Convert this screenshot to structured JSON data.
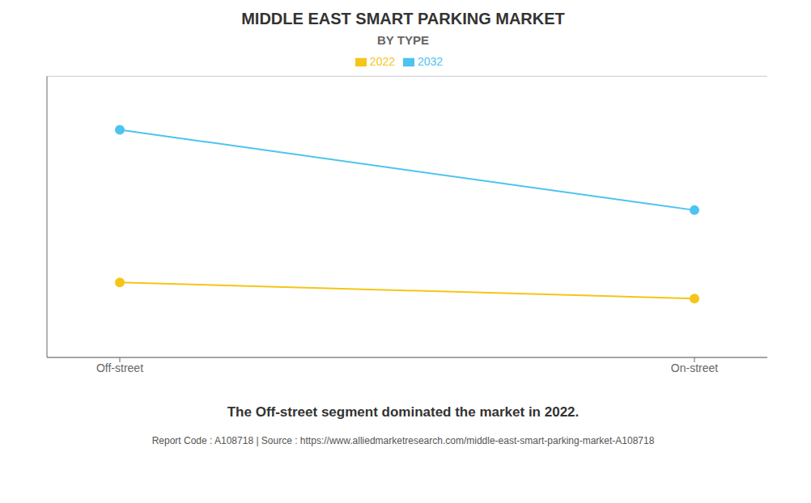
{
  "chart_data": {
    "type": "line",
    "title": "MIDDLE EAST SMART PARKING MARKET",
    "subtitle": "BY TYPE",
    "categories": [
      "Off-street",
      "On-street"
    ],
    "series": [
      {
        "name": "2022",
        "color": "#F5C518",
        "values": [
          0.28,
          0.22
        ],
        "marker": "circle"
      },
      {
        "name": "2032",
        "color": "#4DC3F0",
        "values": [
          0.85,
          0.55
        ],
        "marker": "circle"
      }
    ],
    "ylim": [
      0.0,
      1.05
    ],
    "yticks": [
      0.0,
      0.14285714285714285,
      0.2857142857142857,
      0.42857142857142855,
      0.5714285714285714,
      0.7142857142857142,
      0.8571428571428571,
      1.0
    ],
    "grid": true,
    "tick_labels": "x",
    "legend": "top",
    "annotations": [
      "The Off-street segment dominated the market in 2022.",
      "Report Code : A108718  |  Source : https://www.alliedmarketresearch.com/middle-east-smart-parking-market-A108718"
    ]
  }
}
